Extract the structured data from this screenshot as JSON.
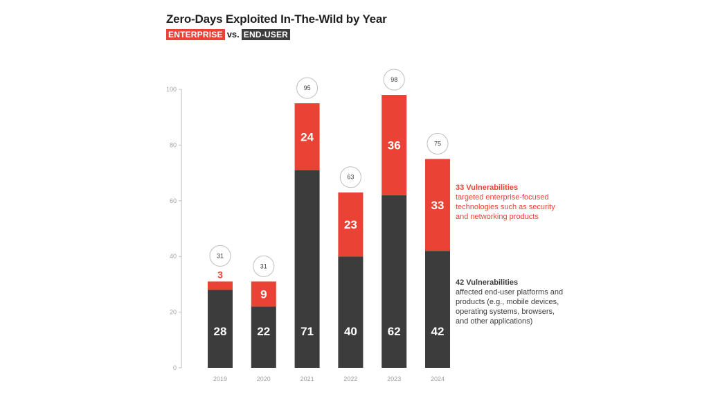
{
  "title": "Zero-Days Exploited In-The-Wild by Year",
  "subtitle": {
    "enterprise_tag": "ENTERPRISE",
    "vs": "vs.",
    "enduser_tag": "END-USER"
  },
  "colors": {
    "enterprise": "#ea4335",
    "end_user": "#3c3c3c",
    "axis": "#bdbdbd",
    "tick_text": "#9e9e9e"
  },
  "notes": {
    "enterprise": {
      "head": "33 Vulnerabilities",
      "body": "targeted enterprise-focused technologies such as security and networking products"
    },
    "end_user": {
      "head": "42 Vulnerabilities",
      "body": "affected end-user platforms and products (e.g., mobile devices, operating systems, browsers, and other applications)"
    }
  },
  "chart_data": {
    "type": "bar",
    "stacked": true,
    "title": "Zero-Days Exploited In-The-Wild by Year",
    "categories": [
      "2019",
      "2020",
      "2021",
      "2022",
      "2023",
      "2024"
    ],
    "series": [
      {
        "name": "END-USER",
        "values": [
          28,
          22,
          71,
          40,
          62,
          42
        ]
      },
      {
        "name": "ENTERPRISE",
        "values": [
          3,
          9,
          24,
          23,
          36,
          33
        ]
      }
    ],
    "totals": [
      31,
      31,
      95,
      63,
      98,
      75
    ],
    "yticks": [
      0,
      20,
      40,
      60,
      80,
      100
    ],
    "ylim": [
      0,
      100
    ],
    "xlabel": "",
    "ylabel": ""
  }
}
